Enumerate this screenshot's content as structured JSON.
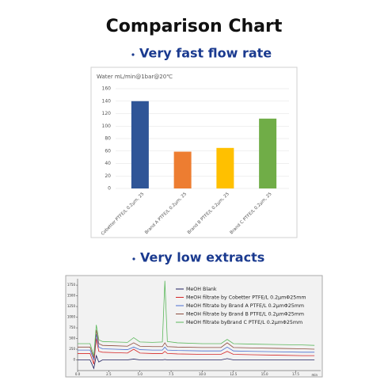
{
  "title": "Comparison Chart",
  "chart_data": [
    {
      "type": "bar",
      "subtitle": "Very fast flow rate",
      "y_label": "Water  mL/min@1bar@20℃",
      "categories": [
        "Cobetter PTFE/L 0.2μm, 25",
        "Brand A PTFE/L 0.2μm, 25",
        "Brand B PTFE/L 0.2μm, 25",
        "Brand C PTFE/L 0.2μm, 25"
      ],
      "values": [
        140,
        59,
        65,
        112
      ],
      "colors": [
        "#2f5597",
        "#ed7d31",
        "#ffc000",
        "#70ad47"
      ],
      "ylim": [
        0,
        160
      ],
      "yticks": [
        0,
        20,
        40,
        60,
        80,
        100,
        120,
        140,
        160
      ],
      "grid": true
    },
    {
      "type": "line",
      "subtitle": "Very low extracts",
      "x_label": "min",
      "x": [
        0,
        1,
        1.3,
        1.5,
        1.7,
        2,
        3,
        4,
        4.5,
        5,
        6,
        6.8,
        7,
        7.2,
        8,
        10,
        11.5,
        12,
        12.5,
        14,
        16,
        18,
        19
      ],
      "series": [
        {
          "name": "MeOH Blank",
          "color": "#1f1f5f",
          "values": [
            0,
            0,
            -200,
            100,
            -50,
            0,
            0,
            0,
            20,
            0,
            0,
            0,
            10,
            0,
            0,
            0,
            0,
            30,
            0,
            0,
            0,
            0,
            0
          ]
        },
        {
          "name": "MeOH filtrate by Cobetter PTFE/L 0.2μmΦ25mm",
          "color": "#d62728",
          "values": [
            150,
            150,
            -100,
            500,
            200,
            180,
            170,
            160,
            250,
            160,
            150,
            150,
            200,
            150,
            140,
            130,
            130,
            200,
            130,
            120,
            110,
            100,
            100
          ]
        },
        {
          "name": "MeOH filtrate by Brand A PTFE/L 0.2μmΦ25mm",
          "color": "#4a6fd1",
          "values": [
            230,
            230,
            0,
            600,
            300,
            260,
            250,
            240,
            300,
            240,
            230,
            230,
            300,
            230,
            220,
            210,
            210,
            300,
            210,
            200,
            190,
            180,
            180
          ]
        },
        {
          "name": "MeOH filtrate by Brand B PTFE/L 0.2μmΦ25mm",
          "color": "#8c4b3c",
          "values": [
            300,
            300,
            50,
            700,
            380,
            340,
            330,
            320,
            400,
            320,
            310,
            310,
            400,
            310,
            300,
            290,
            290,
            400,
            290,
            280,
            270,
            260,
            250
          ]
        },
        {
          "name": "MeOH filtrate byBrand C PTFE/L 0.2μmΦ25mm",
          "color": "#5cb85c",
          "values": [
            380,
            380,
            100,
            820,
            470,
            430,
            420,
            410,
            520,
            420,
            410,
            420,
            1850,
            430,
            400,
            380,
            380,
            480,
            380,
            370,
            360,
            350,
            340
          ]
        }
      ],
      "xlim": [
        0,
        19.5
      ],
      "xticks": [
        {
          "value": 0,
          "label": "0.0"
        },
        {
          "value": 2.5,
          "label": "2.5"
        },
        {
          "value": 5,
          "label": "5.0"
        },
        {
          "value": 7.5,
          "label": "7.5"
        },
        {
          "value": 10,
          "label": "10.0"
        },
        {
          "value": 12.5,
          "label": "12.5"
        },
        {
          "value": 15,
          "label": "15.0"
        },
        {
          "value": 17.5,
          "label": "17.5"
        }
      ],
      "ylim": [
        -250,
        1900
      ],
      "yticks": [
        0,
        250,
        500,
        750,
        1000,
        1250,
        1500,
        1750
      ],
      "legend": "upper right"
    }
  ]
}
